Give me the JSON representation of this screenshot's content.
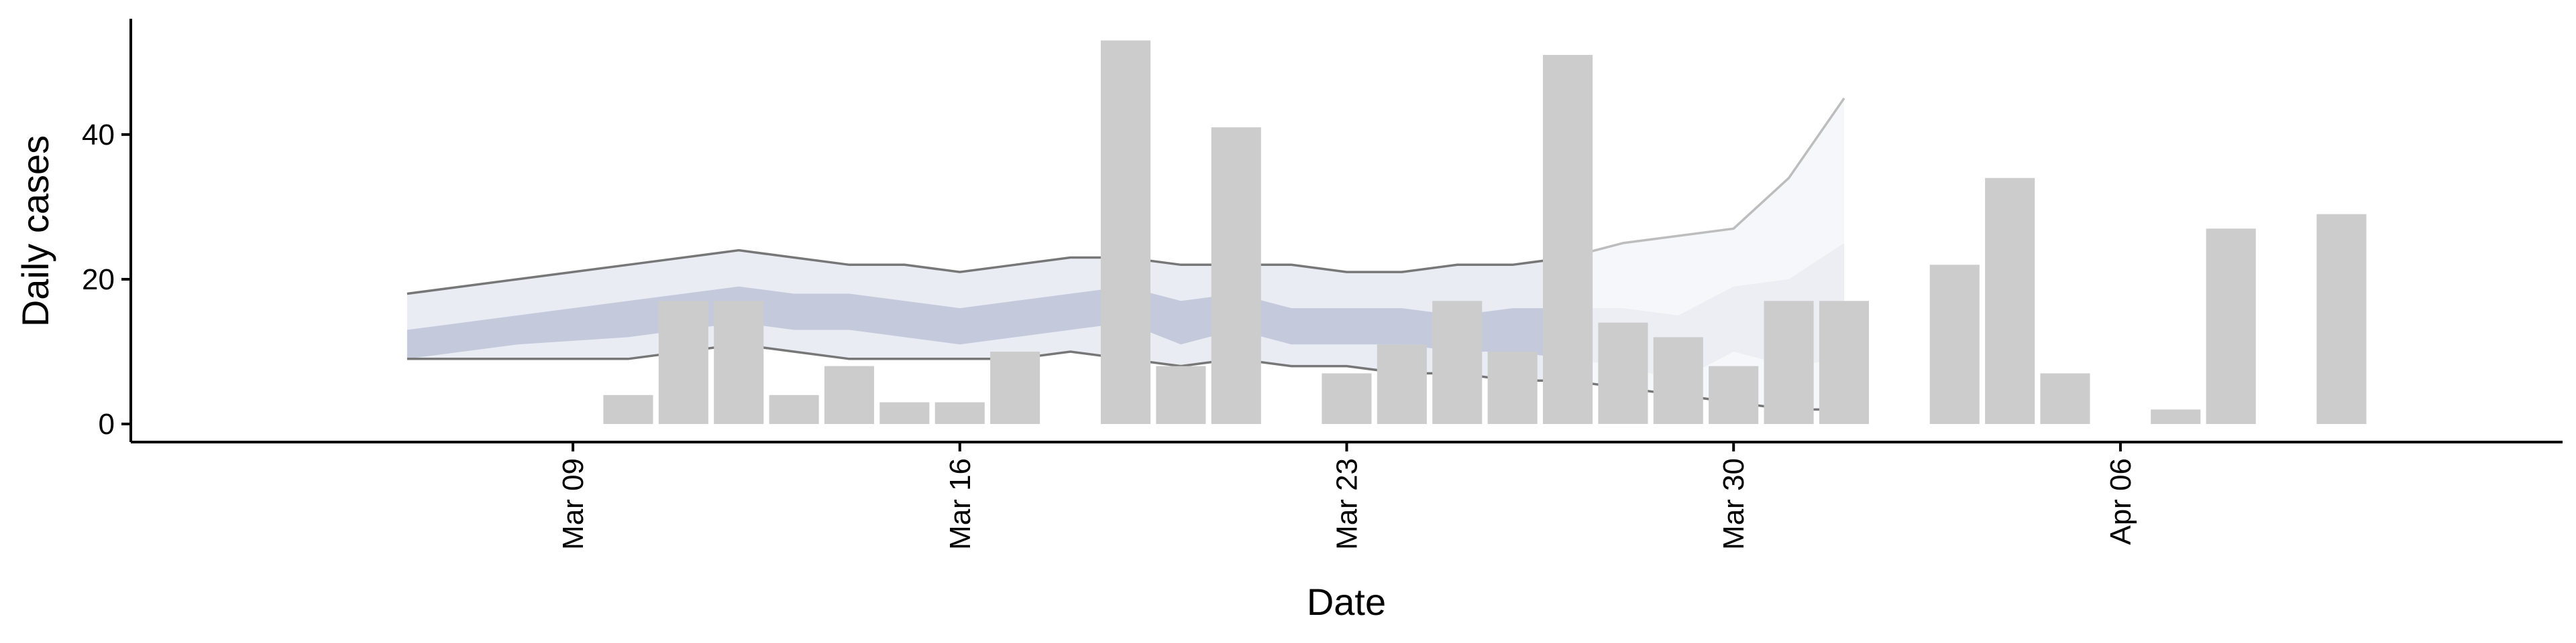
{
  "chart_data": {
    "type": "bar",
    "xlabel": "Date",
    "ylabel": "Daily cases",
    "x_type": "date",
    "xlim": [
      "2020-03-01",
      "2020-04-14"
    ],
    "ylim": [
      -2.5,
      56
    ],
    "x_ticks": [
      {
        "date": "2020-03-09",
        "label": "Mar 09"
      },
      {
        "date": "2020-03-16",
        "label": "Mar 16"
      },
      {
        "date": "2020-03-23",
        "label": "Mar 23"
      },
      {
        "date": "2020-03-30",
        "label": "Mar 30"
      },
      {
        "date": "2020-04-06",
        "label": "Apr 06"
      }
    ],
    "y_ticks": [
      0,
      20,
      40
    ],
    "grid": false,
    "colors": {
      "bars": "#cccccc",
      "band_outer": "#e9ecf3",
      "band_inner": "#c4c9dc",
      "band_outer_forecast": "#f6f7fa",
      "band_inner_forecast": "#eceef3",
      "bound_line": "#777777",
      "bound_line_forecast": "#bdbdbd"
    },
    "bars": [
      {
        "date": "2020-03-10",
        "value": 4
      },
      {
        "date": "2020-03-11",
        "value": 17
      },
      {
        "date": "2020-03-12",
        "value": 17
      },
      {
        "date": "2020-03-13",
        "value": 4
      },
      {
        "date": "2020-03-14",
        "value": 8
      },
      {
        "date": "2020-03-15",
        "value": 3
      },
      {
        "date": "2020-03-16",
        "value": 3
      },
      {
        "date": "2020-03-17",
        "value": 10
      },
      {
        "date": "2020-03-19",
        "value": 53
      },
      {
        "date": "2020-03-20",
        "value": 8
      },
      {
        "date": "2020-03-21",
        "value": 41
      },
      {
        "date": "2020-03-23",
        "value": 7
      },
      {
        "date": "2020-03-24",
        "value": 11
      },
      {
        "date": "2020-03-25",
        "value": 17
      },
      {
        "date": "2020-03-26",
        "value": 10
      },
      {
        "date": "2020-03-27",
        "value": 51
      },
      {
        "date": "2020-03-28",
        "value": 14
      },
      {
        "date": "2020-03-29",
        "value": 12
      },
      {
        "date": "2020-03-30",
        "value": 8
      },
      {
        "date": "2020-03-31",
        "value": 17
      },
      {
        "date": "2020-04-01",
        "value": 17
      },
      {
        "date": "2020-04-03",
        "value": 22
      },
      {
        "date": "2020-04-04",
        "value": 34
      },
      {
        "date": "2020-04-05",
        "value": 7
      },
      {
        "date": "2020-04-07",
        "value": 2
      },
      {
        "date": "2020-04-08",
        "value": 27
      },
      {
        "date": "2020-04-10",
        "value": 29
      }
    ],
    "bands": {
      "estimate": [
        {
          "date": "2020-03-06",
          "outer_low": 9,
          "inner_low": 9,
          "inner_high": 13,
          "outer_high": 18
        },
        {
          "date": "2020-03-08",
          "outer_low": 9,
          "inner_low": 11,
          "inner_high": 15,
          "outer_high": 20
        },
        {
          "date": "2020-03-10",
          "outer_low": 9,
          "inner_low": 12,
          "inner_high": 17,
          "outer_high": 22
        },
        {
          "date": "2020-03-12",
          "outer_low": 11,
          "inner_low": 14,
          "inner_high": 19,
          "outer_high": 24
        },
        {
          "date": "2020-03-13",
          "outer_low": 10,
          "inner_low": 13,
          "inner_high": 18,
          "outer_high": 23
        },
        {
          "date": "2020-03-14",
          "outer_low": 9,
          "inner_low": 13,
          "inner_high": 18,
          "outer_high": 22
        },
        {
          "date": "2020-03-15",
          "outer_low": 9,
          "inner_low": 12,
          "inner_high": 17,
          "outer_high": 22
        },
        {
          "date": "2020-03-16",
          "outer_low": 9,
          "inner_low": 11,
          "inner_high": 16,
          "outer_high": 21
        },
        {
          "date": "2020-03-17",
          "outer_low": 9,
          "inner_low": 12,
          "inner_high": 17,
          "outer_high": 22
        },
        {
          "date": "2020-03-18",
          "outer_low": 10,
          "inner_low": 13,
          "inner_high": 18,
          "outer_high": 23
        },
        {
          "date": "2020-03-19",
          "outer_low": 9,
          "inner_low": 14,
          "inner_high": 19,
          "outer_high": 23
        },
        {
          "date": "2020-03-20",
          "outer_low": 8,
          "inner_low": 11,
          "inner_high": 17,
          "outer_high": 22
        },
        {
          "date": "2020-03-21",
          "outer_low": 9,
          "inner_low": 13,
          "inner_high": 18,
          "outer_high": 22
        },
        {
          "date": "2020-03-22",
          "outer_low": 8,
          "inner_low": 11,
          "inner_high": 16,
          "outer_high": 22
        },
        {
          "date": "2020-03-23",
          "outer_low": 8,
          "inner_low": 11,
          "inner_high": 16,
          "outer_high": 21
        },
        {
          "date": "2020-03-24",
          "outer_low": 7,
          "inner_low": 11,
          "inner_high": 16,
          "outer_high": 21
        },
        {
          "date": "2020-03-25",
          "outer_low": 7,
          "inner_low": 10,
          "inner_high": 15,
          "outer_high": 22
        },
        {
          "date": "2020-03-26",
          "outer_low": 6,
          "inner_low": 10,
          "inner_high": 16,
          "outer_high": 22
        },
        {
          "date": "2020-03-27",
          "outer_low": 6,
          "inner_low": 9,
          "inner_high": 16,
          "outer_high": 23
        }
      ],
      "forecast": [
        {
          "date": "2020-03-27",
          "outer_low": 6,
          "inner_low": 9,
          "inner_high": 16,
          "outer_high": 23
        },
        {
          "date": "2020-03-28",
          "outer_low": 5,
          "inner_low": 8,
          "inner_high": 16,
          "outer_high": 25
        },
        {
          "date": "2020-03-29",
          "outer_low": 4,
          "inner_low": 6,
          "inner_high": 15,
          "outer_high": 26
        },
        {
          "date": "2020-03-30",
          "outer_low": 3,
          "inner_low": 10,
          "inner_high": 19,
          "outer_high": 27
        },
        {
          "date": "2020-03-31",
          "outer_low": 2,
          "inner_low": 8,
          "inner_high": 20,
          "outer_high": 34
        },
        {
          "date": "2020-04-01",
          "outer_low": 2,
          "inner_low": 9,
          "inner_high": 25,
          "outer_high": 45
        }
      ]
    }
  }
}
